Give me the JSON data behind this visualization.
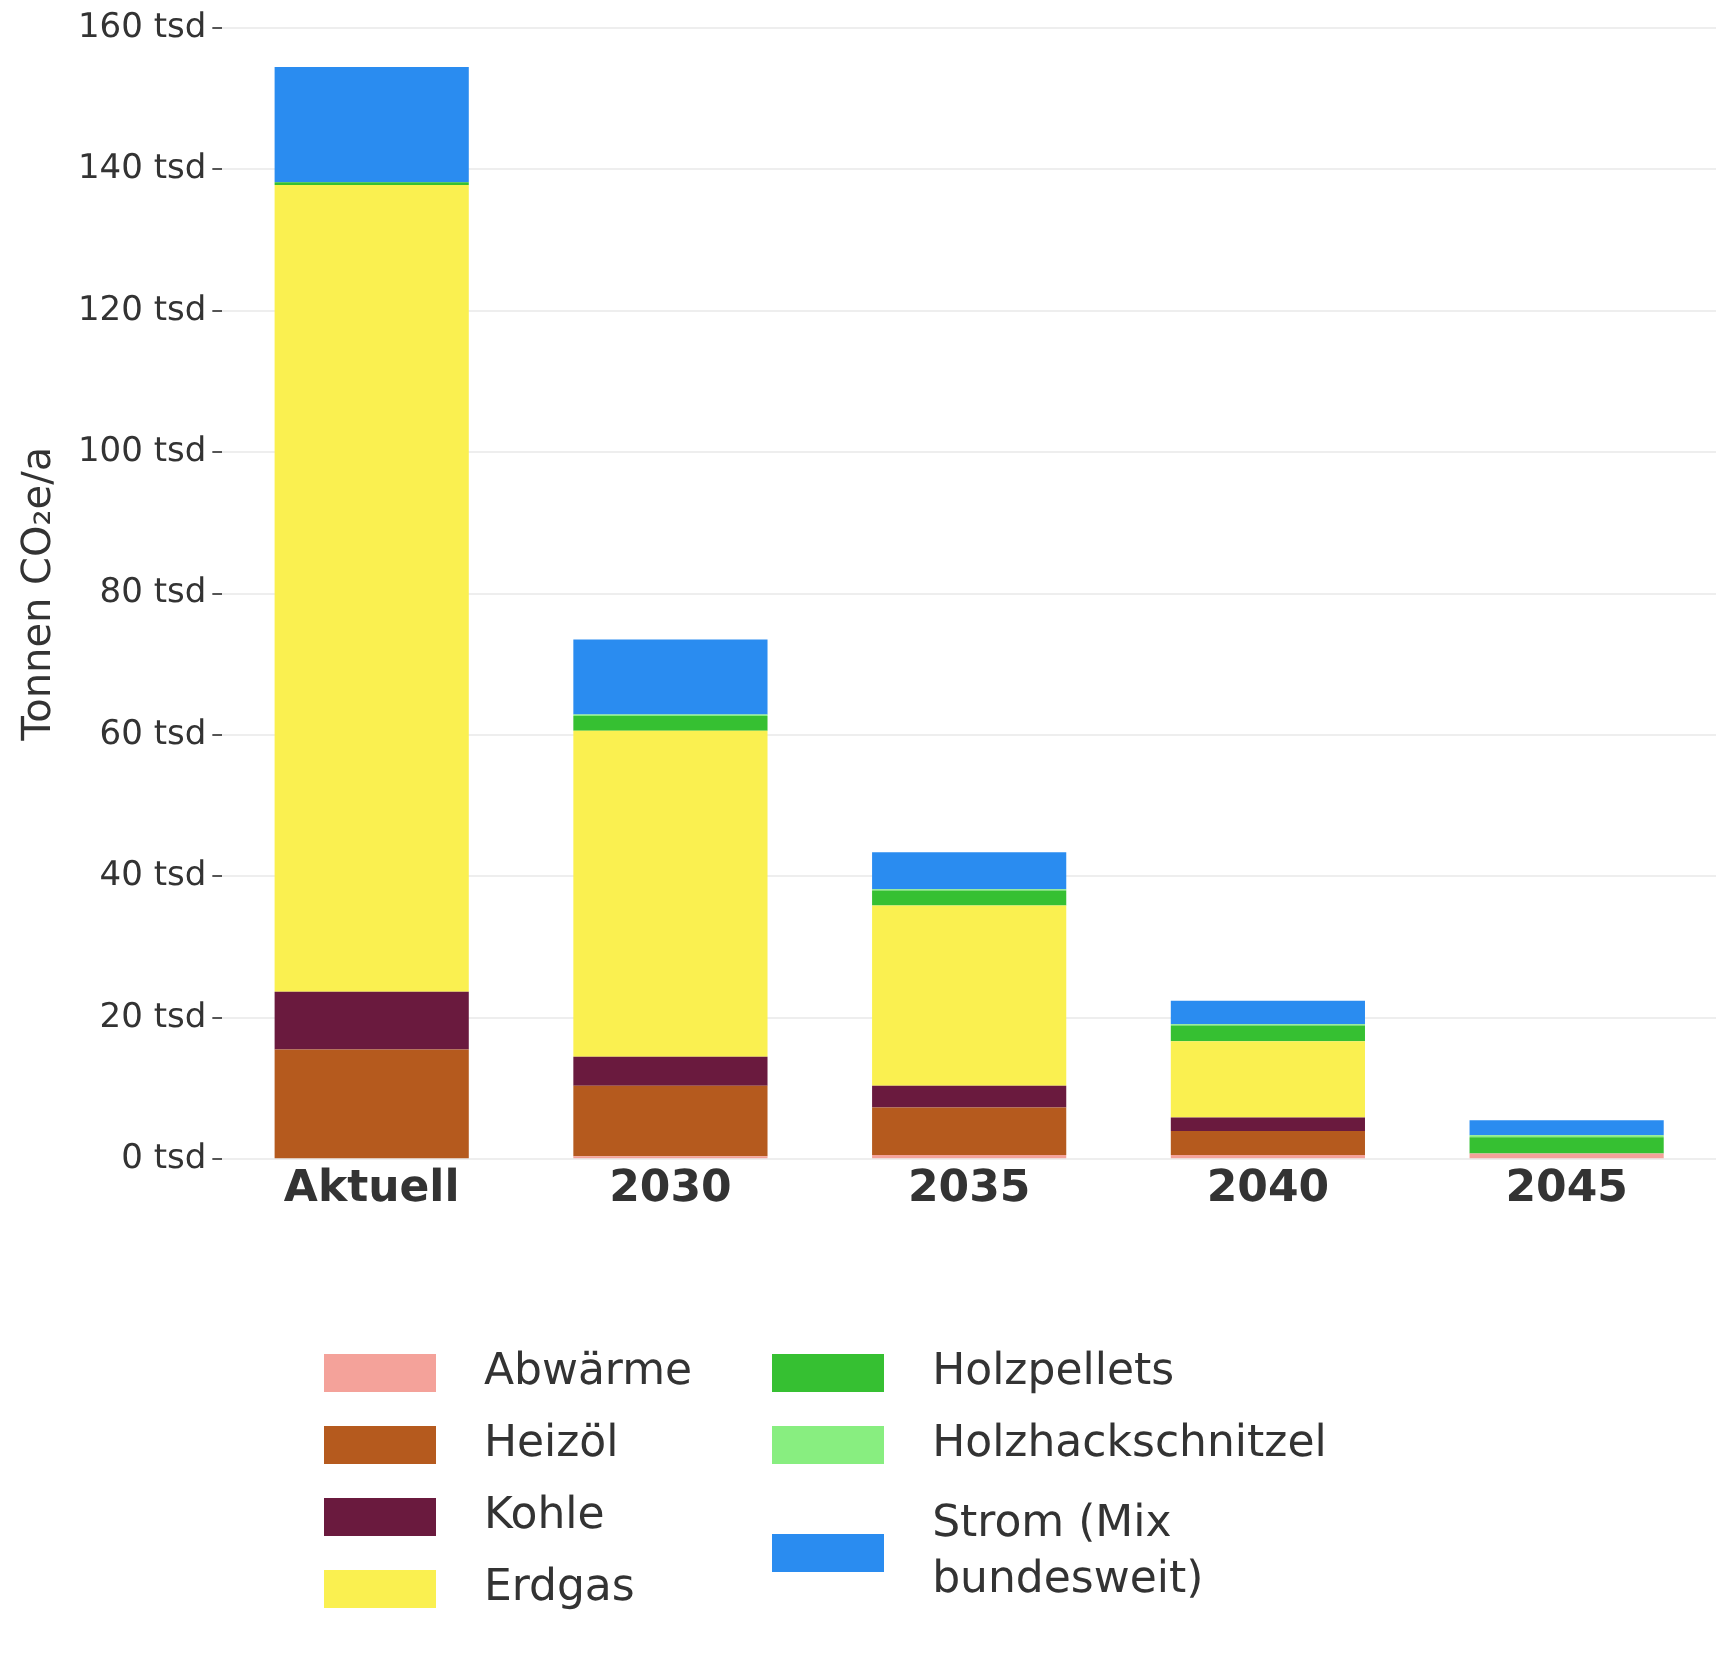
{
  "chart_data": {
    "type": "bar",
    "stacked": true,
    "ylabel": "Tonnen CO₂e/a",
    "categories": [
      "Aktuell",
      "2030",
      "2035",
      "2040",
      "2045"
    ],
    "ylim": [
      0,
      160
    ],
    "yticks": [
      {
        "value": 0,
        "label": "0 tsd"
      },
      {
        "value": 20,
        "label": "20 tsd"
      },
      {
        "value": 40,
        "label": "40 tsd"
      },
      {
        "value": 60,
        "label": "60 tsd"
      },
      {
        "value": 80,
        "label": "80 tsd"
      },
      {
        "value": 100,
        "label": "100 tsd"
      },
      {
        "value": 120,
        "label": "120 tsd"
      },
      {
        "value": 140,
        "label": "140 tsd"
      },
      {
        "value": 160,
        "label": "160 tsd"
      }
    ],
    "grid": "y",
    "legend": "bottom",
    "series": [
      {
        "name": "Abwärme",
        "color": "#f4a29a",
        "values": [
          0,
          0.4,
          0.6,
          0.6,
          0.8
        ]
      },
      {
        "name": "Heizöl",
        "color": "#b55a1e",
        "values": [
          15.5,
          10,
          6.7,
          3.4,
          0
        ]
      },
      {
        "name": "Kohle",
        "color": "#6a1a3e",
        "values": [
          8.2,
          4.1,
          3.1,
          1.9,
          0
        ]
      },
      {
        "name": "Erdgas",
        "color": "#faf050",
        "values": [
          114.1,
          46.1,
          25.5,
          10.8,
          0
        ]
      },
      {
        "name": "Holzpellets",
        "color": "#36c032",
        "values": [
          0.4,
          2.1,
          2.1,
          2.2,
          2.3
        ]
      },
      {
        "name": "Holzhackschnitzel",
        "color": "#88ee80",
        "values": [
          0,
          0.2,
          0.2,
          0.2,
          0.3
        ]
      },
      {
        "name": "Strom (Mix bundesweit)",
        "color": "#2a8cf0",
        "values": [
          16.3,
          10.6,
          5.2,
          3.3,
          2.1
        ]
      }
    ]
  }
}
